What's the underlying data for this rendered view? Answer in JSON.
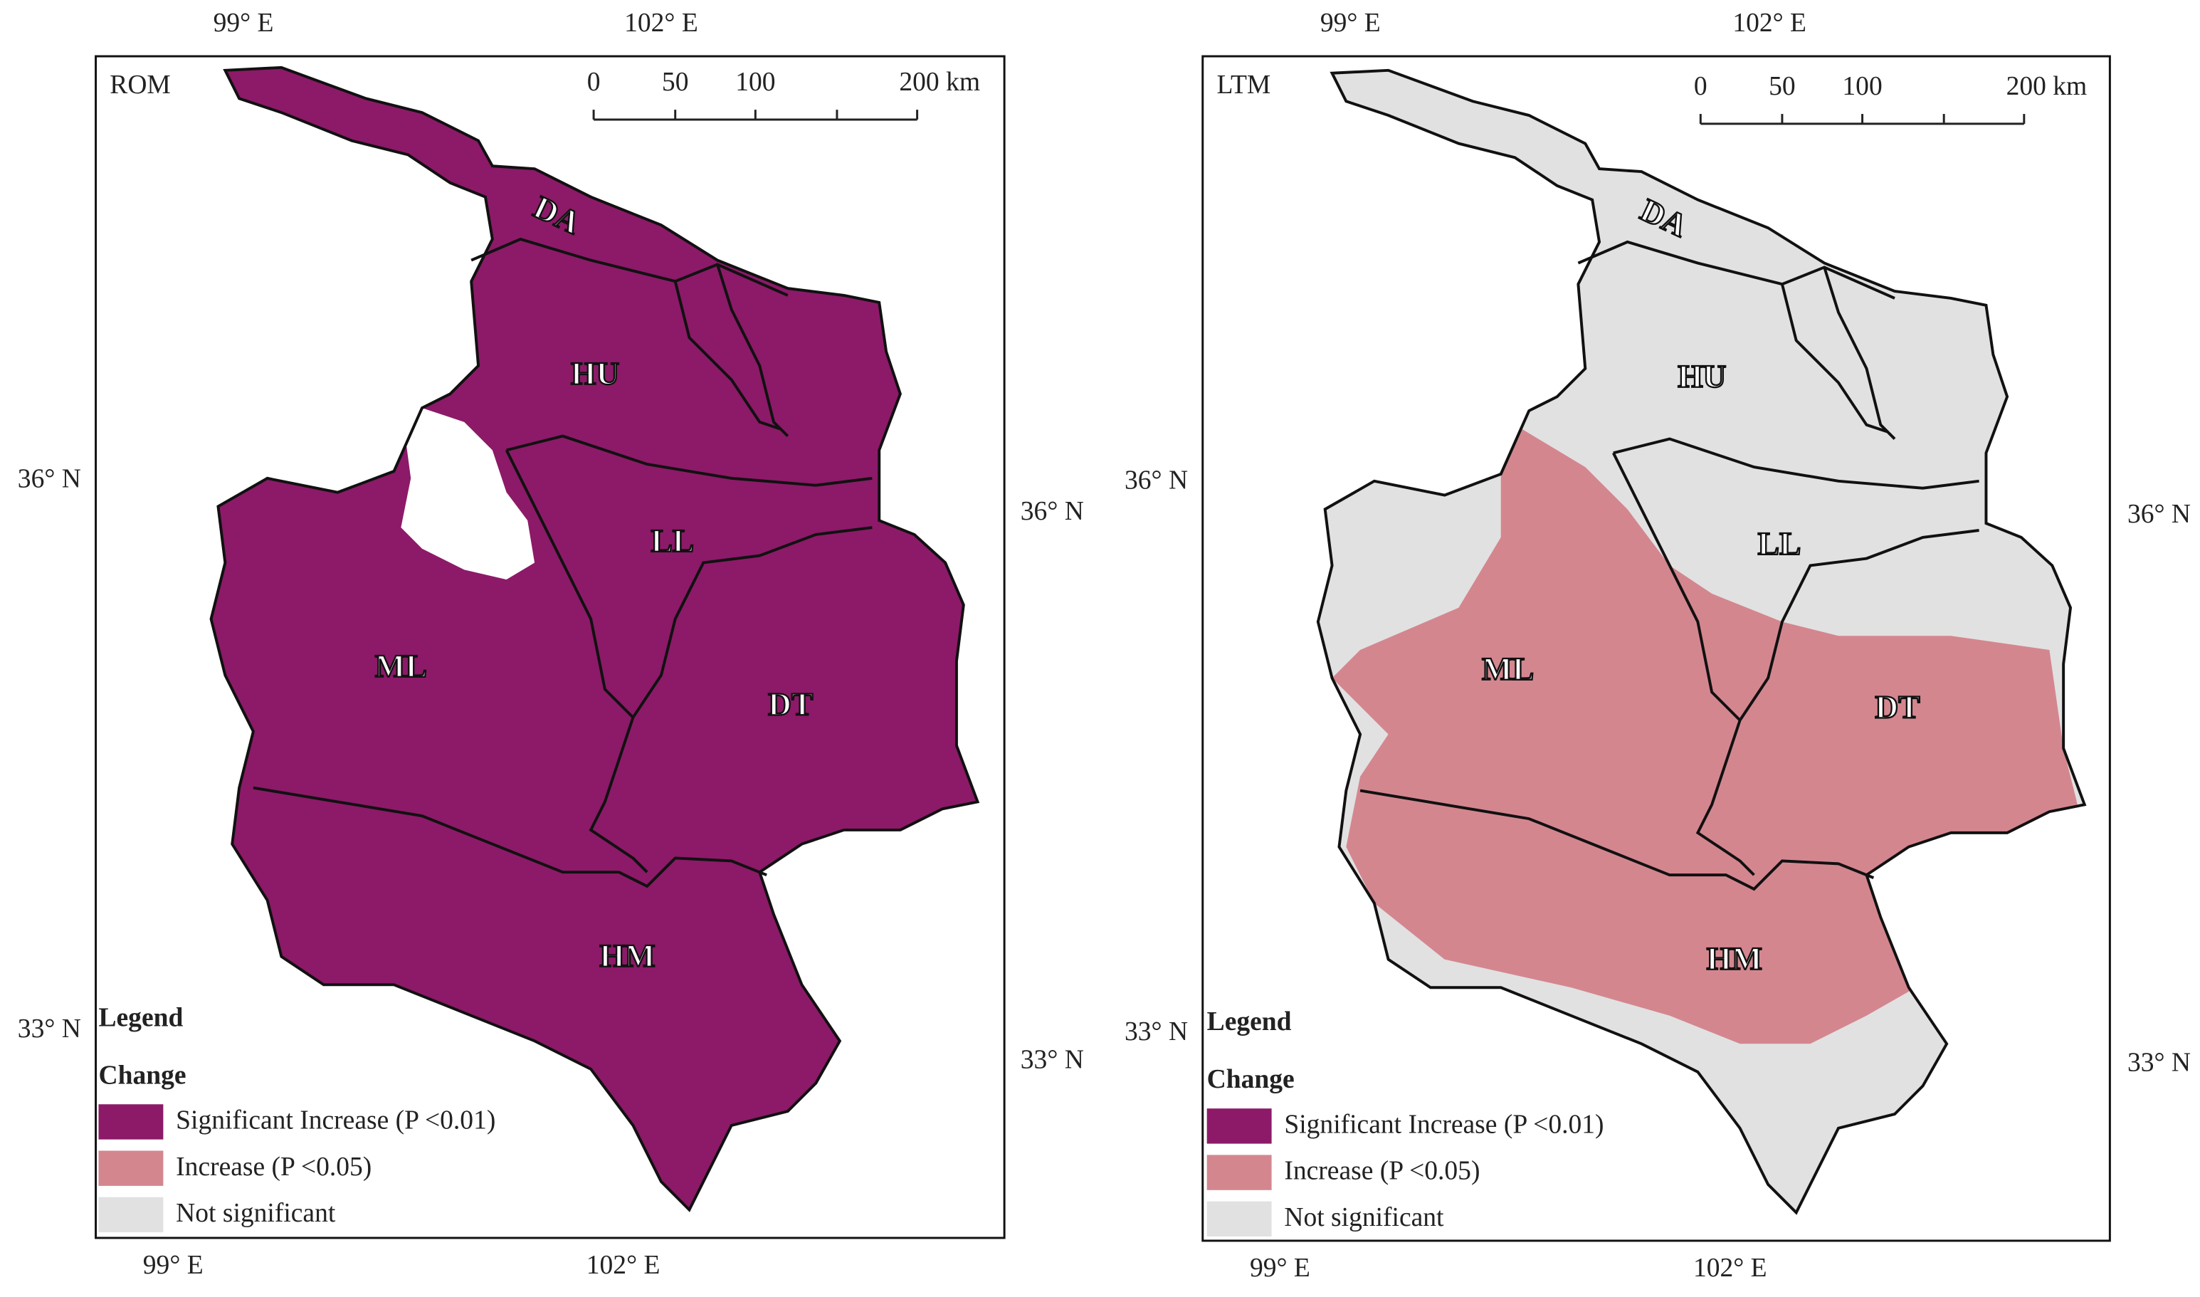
{
  "panels": [
    {
      "label": "ROM",
      "top_longitudes": [
        "99° E",
        "102° E"
      ],
      "bottom_longitudes": [
        "99° E",
        "102° E"
      ],
      "left_latitudes": [
        "36° N",
        "33° N"
      ],
      "right_latitudes": [
        "36° N",
        "33° N"
      ],
      "scale_bar": [
        "0",
        "50",
        "100",
        "200 km"
      ],
      "regions": [
        "DA",
        "HU",
        "LL",
        "ML",
        "DT",
        "HM"
      ],
      "legend": {
        "title": "Legend",
        "subtitle": "Change",
        "items": [
          {
            "label": "Significant Increase (P <0.01)",
            "color": "#8c1a68"
          },
          {
            "label": "Increase (P <0.05)",
            "color": "#d4868f"
          },
          {
            "label": "Not significant",
            "color": "#e1e1e1"
          }
        ]
      }
    },
    {
      "label": "LTM",
      "top_longitudes": [
        "99° E",
        "102° E"
      ],
      "bottom_longitudes": [
        "99° E",
        "102° E"
      ],
      "left_latitudes": [
        "36° N",
        "33° N"
      ],
      "right_latitudes": [
        "36° N",
        "33° N"
      ],
      "scale_bar": [
        "0",
        "50",
        "100",
        "200 km"
      ],
      "regions": [
        "DA",
        "HU",
        "LL",
        "ML",
        "DT",
        "HM"
      ],
      "legend": {
        "title": "Legend",
        "subtitle": "Change",
        "items": [
          {
            "label": "Significant Increase (P <0.01)",
            "color": "#8c1a68"
          },
          {
            "label": "Increase (P <0.05)",
            "color": "#d4868f"
          },
          {
            "label": "Not significant",
            "color": "#e1e1e1"
          }
        ]
      }
    }
  ]
}
